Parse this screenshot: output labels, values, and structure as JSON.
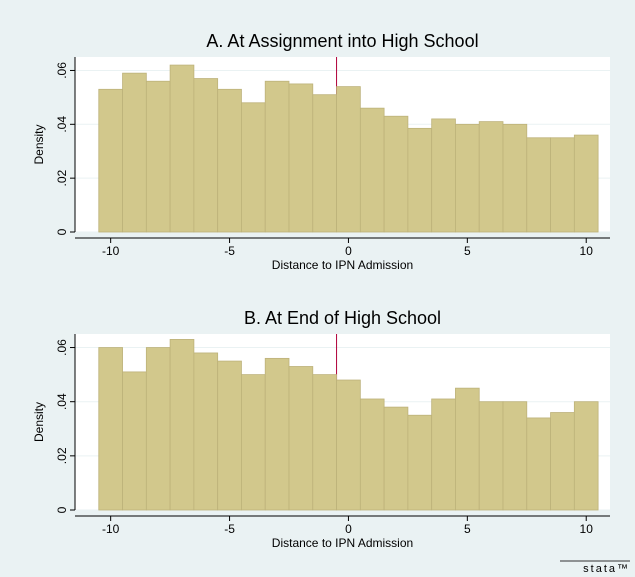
{
  "chart_data": [
    {
      "type": "histogram",
      "title": "A. At Assignment into High School",
      "xlabel": "Distance to IPN Admission",
      "ylabel": "Density",
      "bins": [
        -10.5,
        -9.5,
        -8.5,
        -7.5,
        -6.5,
        -5.5,
        -4.5,
        -3.5,
        -2.5,
        -1.5,
        -0.5,
        0.5,
        1.5,
        2.5,
        3.5,
        4.5,
        5.5,
        6.5,
        7.5,
        8.5,
        9.5,
        10.5
      ],
      "values": [
        0.053,
        0.059,
        0.056,
        0.062,
        0.057,
        0.053,
        0.048,
        0.056,
        0.055,
        0.051,
        0.054,
        0.046,
        0.043,
        0.0385,
        0.042,
        0.04,
        0.041,
        0.04,
        0.035,
        0.035,
        0.036
      ],
      "color": "#d2c88c",
      "reference_line": -0.5,
      "reference_color": "#b0003a",
      "xlim": [
        -11.5,
        11
      ],
      "xticks": [
        -10,
        -5,
        0,
        5,
        10
      ],
      "ylim": [
        0,
        0.065
      ],
      "yticks": [
        0,
        {
          "value": 0.02,
          "label": ".02"
        },
        {
          "value": 0.04,
          "label": ".04"
        },
        {
          "value": 0.06,
          "label": ".06"
        }
      ],
      "grid": true
    },
    {
      "type": "histogram",
      "title": "B. At End of High School",
      "xlabel": "Distance to IPN Admission",
      "ylabel": "Density",
      "bins": [
        -10.5,
        -9.5,
        -8.5,
        -7.5,
        -6.5,
        -5.5,
        -4.5,
        -3.5,
        -2.5,
        -1.5,
        -0.5,
        0.5,
        1.5,
        2.5,
        3.5,
        4.5,
        5.5,
        6.5,
        7.5,
        8.5,
        9.5,
        10.5
      ],
      "values": [
        0.06,
        0.051,
        0.06,
        0.063,
        0.058,
        0.055,
        0.05,
        0.056,
        0.053,
        0.05,
        0.048,
        0.041,
        0.038,
        0.035,
        0.041,
        0.045,
        0.04,
        0.04,
        0.034,
        0.036,
        0.04
      ],
      "color": "#d2c88c",
      "reference_line": -0.5,
      "reference_color": "#b0003a",
      "xlim": [
        -11.5,
        11
      ],
      "xticks": [
        -10,
        -5,
        0,
        5,
        10
      ],
      "ylim": [
        0,
        0.065
      ],
      "yticks": [
        0,
        {
          "value": 0.02,
          "label": ".02"
        },
        {
          "value": 0.04,
          "label": ".04"
        },
        {
          "value": 0.06,
          "label": ".06"
        }
      ],
      "grid": true
    }
  ],
  "logo": "stata™"
}
